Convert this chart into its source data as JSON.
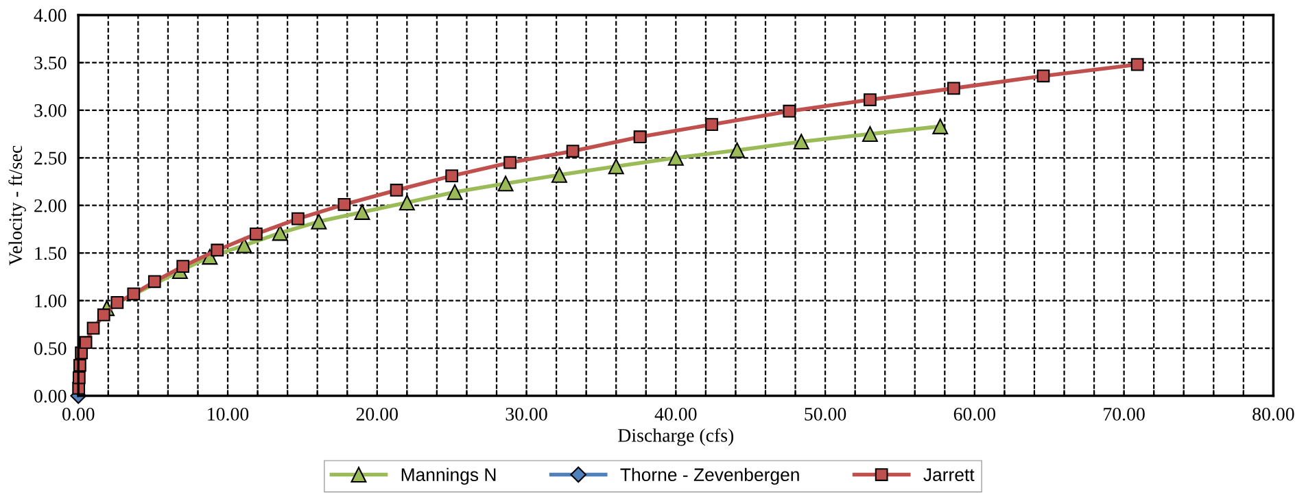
{
  "chart_data": {
    "type": "line",
    "xlabel": "Discharge (cfs)",
    "ylabel": "Velocity - ft/sec",
    "xlim": [
      0,
      80
    ],
    "ylim": [
      0,
      4
    ],
    "xticks": [
      {
        "value": 0,
        "label": "0.00"
      },
      {
        "value": 2,
        "label": null
      },
      {
        "value": 4,
        "label": null
      },
      {
        "value": 6,
        "label": null
      },
      {
        "value": 8,
        "label": null
      },
      {
        "value": 10,
        "label": "10.00"
      },
      {
        "value": 12,
        "label": null
      },
      {
        "value": 14,
        "label": null
      },
      {
        "value": 16,
        "label": null
      },
      {
        "value": 18,
        "label": null
      },
      {
        "value": 20,
        "label": "20.00"
      },
      {
        "value": 22,
        "label": null
      },
      {
        "value": 24,
        "label": null
      },
      {
        "value": 26,
        "label": null
      },
      {
        "value": 28,
        "label": null
      },
      {
        "value": 30,
        "label": "30.00"
      },
      {
        "value": 32,
        "label": null
      },
      {
        "value": 34,
        "label": null
      },
      {
        "value": 36,
        "label": null
      },
      {
        "value": 38,
        "label": null
      },
      {
        "value": 40,
        "label": "40.00"
      },
      {
        "value": 42,
        "label": null
      },
      {
        "value": 44,
        "label": null
      },
      {
        "value": 46,
        "label": null
      },
      {
        "value": 48,
        "label": null
      },
      {
        "value": 50,
        "label": "50.00"
      },
      {
        "value": 52,
        "label": null
      },
      {
        "value": 54,
        "label": null
      },
      {
        "value": 56,
        "label": null
      },
      {
        "value": 58,
        "label": null
      },
      {
        "value": 60,
        "label": "60.00"
      },
      {
        "value": 62,
        "label": null
      },
      {
        "value": 64,
        "label": null
      },
      {
        "value": 66,
        "label": null
      },
      {
        "value": 68,
        "label": null
      },
      {
        "value": 70,
        "label": "70.00"
      },
      {
        "value": 72,
        "label": null
      },
      {
        "value": 74,
        "label": null
      },
      {
        "value": 76,
        "label": null
      },
      {
        "value": 78,
        "label": null
      },
      {
        "value": 80,
        "label": "80.00"
      }
    ],
    "yticks": [
      {
        "value": 0,
        "label": "0.00"
      },
      {
        "value": 0.5,
        "label": "0.50"
      },
      {
        "value": 1,
        "label": "1.00"
      },
      {
        "value": 1.5,
        "label": "1.50"
      },
      {
        "value": 2,
        "label": "2.00"
      },
      {
        "value": 2.5,
        "label": "2.50"
      },
      {
        "value": 3,
        "label": "3.00"
      },
      {
        "value": 3.5,
        "label": "3.50"
      },
      {
        "value": 4,
        "label": "4.00"
      }
    ],
    "grid": true,
    "legend": "bottom",
    "line_style": "solid",
    "series": [
      {
        "name": "Mannings N",
        "color": "#9bbb59",
        "marker": "triangle",
        "x": [
          1.9,
          6.8,
          8.8,
          11.1,
          13.5,
          16.1,
          19.0,
          22.0,
          25.2,
          28.6,
          32.2,
          36.0,
          40.0,
          44.1,
          48.4,
          53.0,
          57.7
        ],
        "values": [
          0.92,
          1.31,
          1.46,
          1.58,
          1.71,
          1.83,
          1.93,
          2.03,
          2.14,
          2.23,
          2.32,
          2.41,
          2.5,
          2.58,
          2.67,
          2.75,
          2.83
        ]
      },
      {
        "name": "Thorne - Zevenbergen",
        "color": "#4f81bd",
        "marker": "diamond",
        "x": [
          0
        ],
        "values": [
          0
        ]
      },
      {
        "name": "Jarrett",
        "color": "#c0504d",
        "marker": "square",
        "x": [
          0.02,
          0.05,
          0.1,
          0.2,
          0.5,
          1.0,
          1.7,
          2.6,
          3.7,
          5.1,
          7.0,
          9.3,
          11.9,
          14.7,
          17.8,
          21.3,
          25.0,
          28.9,
          33.1,
          37.6,
          42.4,
          47.6,
          53.0,
          58.6,
          64.6,
          70.9
        ],
        "values": [
          0.08,
          0.19,
          0.32,
          0.45,
          0.56,
          0.71,
          0.85,
          0.98,
          1.07,
          1.2,
          1.36,
          1.53,
          1.7,
          1.86,
          2.01,
          2.16,
          2.31,
          2.45,
          2.57,
          2.72,
          2.85,
          2.99,
          3.11,
          3.23,
          3.36,
          3.48
        ]
      }
    ]
  }
}
